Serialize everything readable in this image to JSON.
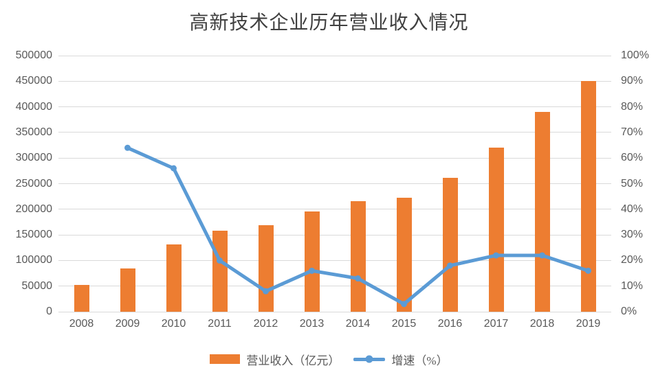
{
  "chart_data": {
    "type": "combo-bar-line",
    "title": "高新技术企业历年营业收入情况",
    "categories": [
      "2008",
      "2009",
      "2010",
      "2011",
      "2012",
      "2013",
      "2014",
      "2015",
      "2016",
      "2017",
      "2018",
      "2019"
    ],
    "series": [
      {
        "name": "营业收入（亿元）",
        "type": "bar",
        "axis": "left",
        "color": "#ED7D31",
        "values": [
          52000,
          84000,
          131000,
          158000,
          169000,
          196000,
          216000,
          222000,
          262000,
          320000,
          390000,
          451000
        ]
      },
      {
        "name": "增速（%）",
        "type": "line",
        "axis": "right",
        "color": "#5B9BD5",
        "values": [
          null,
          64,
          56,
          20,
          8,
          16,
          13,
          3,
          18,
          22,
          22,
          16
        ]
      }
    ],
    "left_axis": {
      "min": 0,
      "max": 500000,
      "step": 50000,
      "tick_labels": [
        "0",
        "50000",
        "100000",
        "150000",
        "200000",
        "250000",
        "300000",
        "350000",
        "400000",
        "450000",
        "500000"
      ]
    },
    "right_axis": {
      "min": 0,
      "max": 100,
      "step": 10,
      "tick_labels": [
        "0%",
        "10%",
        "20%",
        "30%",
        "40%",
        "50%",
        "60%",
        "70%",
        "80%",
        "90%",
        "100%"
      ]
    },
    "grid": true,
    "legend_position": "bottom",
    "colors": {
      "gridline": "#D9D9D9",
      "axis_text": "#595959",
      "title_text": "#404040"
    }
  }
}
